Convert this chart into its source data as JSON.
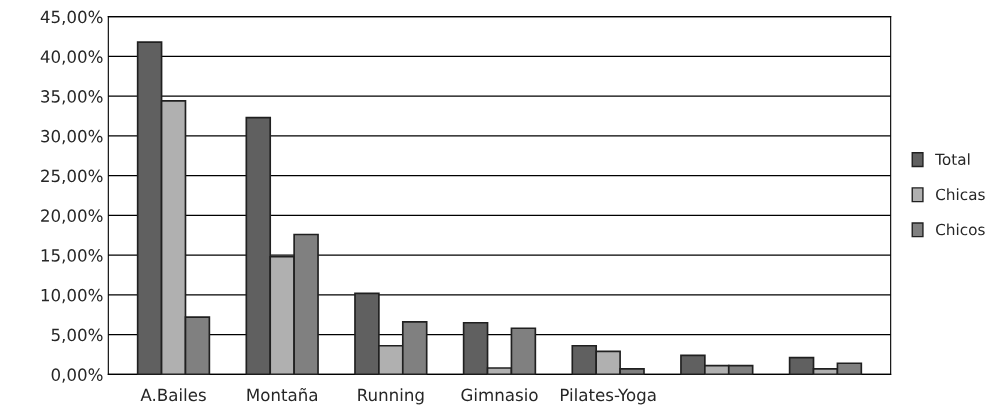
{
  "chart_data": {
    "type": "bar",
    "categories": [
      "A.Bailes",
      "Montaña",
      "Running",
      "Gimnasio",
      "Pilates-Yoga",
      null,
      null
    ],
    "series": [
      {
        "name": "Total",
        "color": "#606060",
        "values": [
          41.8,
          32.3,
          10.2,
          6.5,
          3.6,
          2.4,
          2.1
        ]
      },
      {
        "name": "Chicas",
        "color": "#b0b0b0",
        "values": [
          34.4,
          14.8,
          3.6,
          0.8,
          2.9,
          1.1,
          0.7
        ]
      },
      {
        "name": "Chicos",
        "color": "#808080",
        "values": [
          7.2,
          17.6,
          6.6,
          5.8,
          0.7,
          1.1,
          1.4
        ]
      }
    ],
    "ylim": [
      0,
      45
    ],
    "yticks": [
      {
        "value": 0,
        "label": "0,00%"
      },
      {
        "value": 5,
        "label": "5,00%"
      },
      {
        "value": 10,
        "label": "10,00%"
      },
      {
        "value": 15,
        "label": "15,00%"
      },
      {
        "value": 20,
        "label": "20,00%"
      },
      {
        "value": 25,
        "label": "25,00%"
      },
      {
        "value": 30,
        "label": "30,00%"
      },
      {
        "value": 35,
        "label": "35,00%"
      },
      {
        "value": 40,
        "label": "40,00%"
      },
      {
        "value": 45,
        "label": "45,00%"
      }
    ],
    "grid": "y",
    "legend": "right"
  }
}
